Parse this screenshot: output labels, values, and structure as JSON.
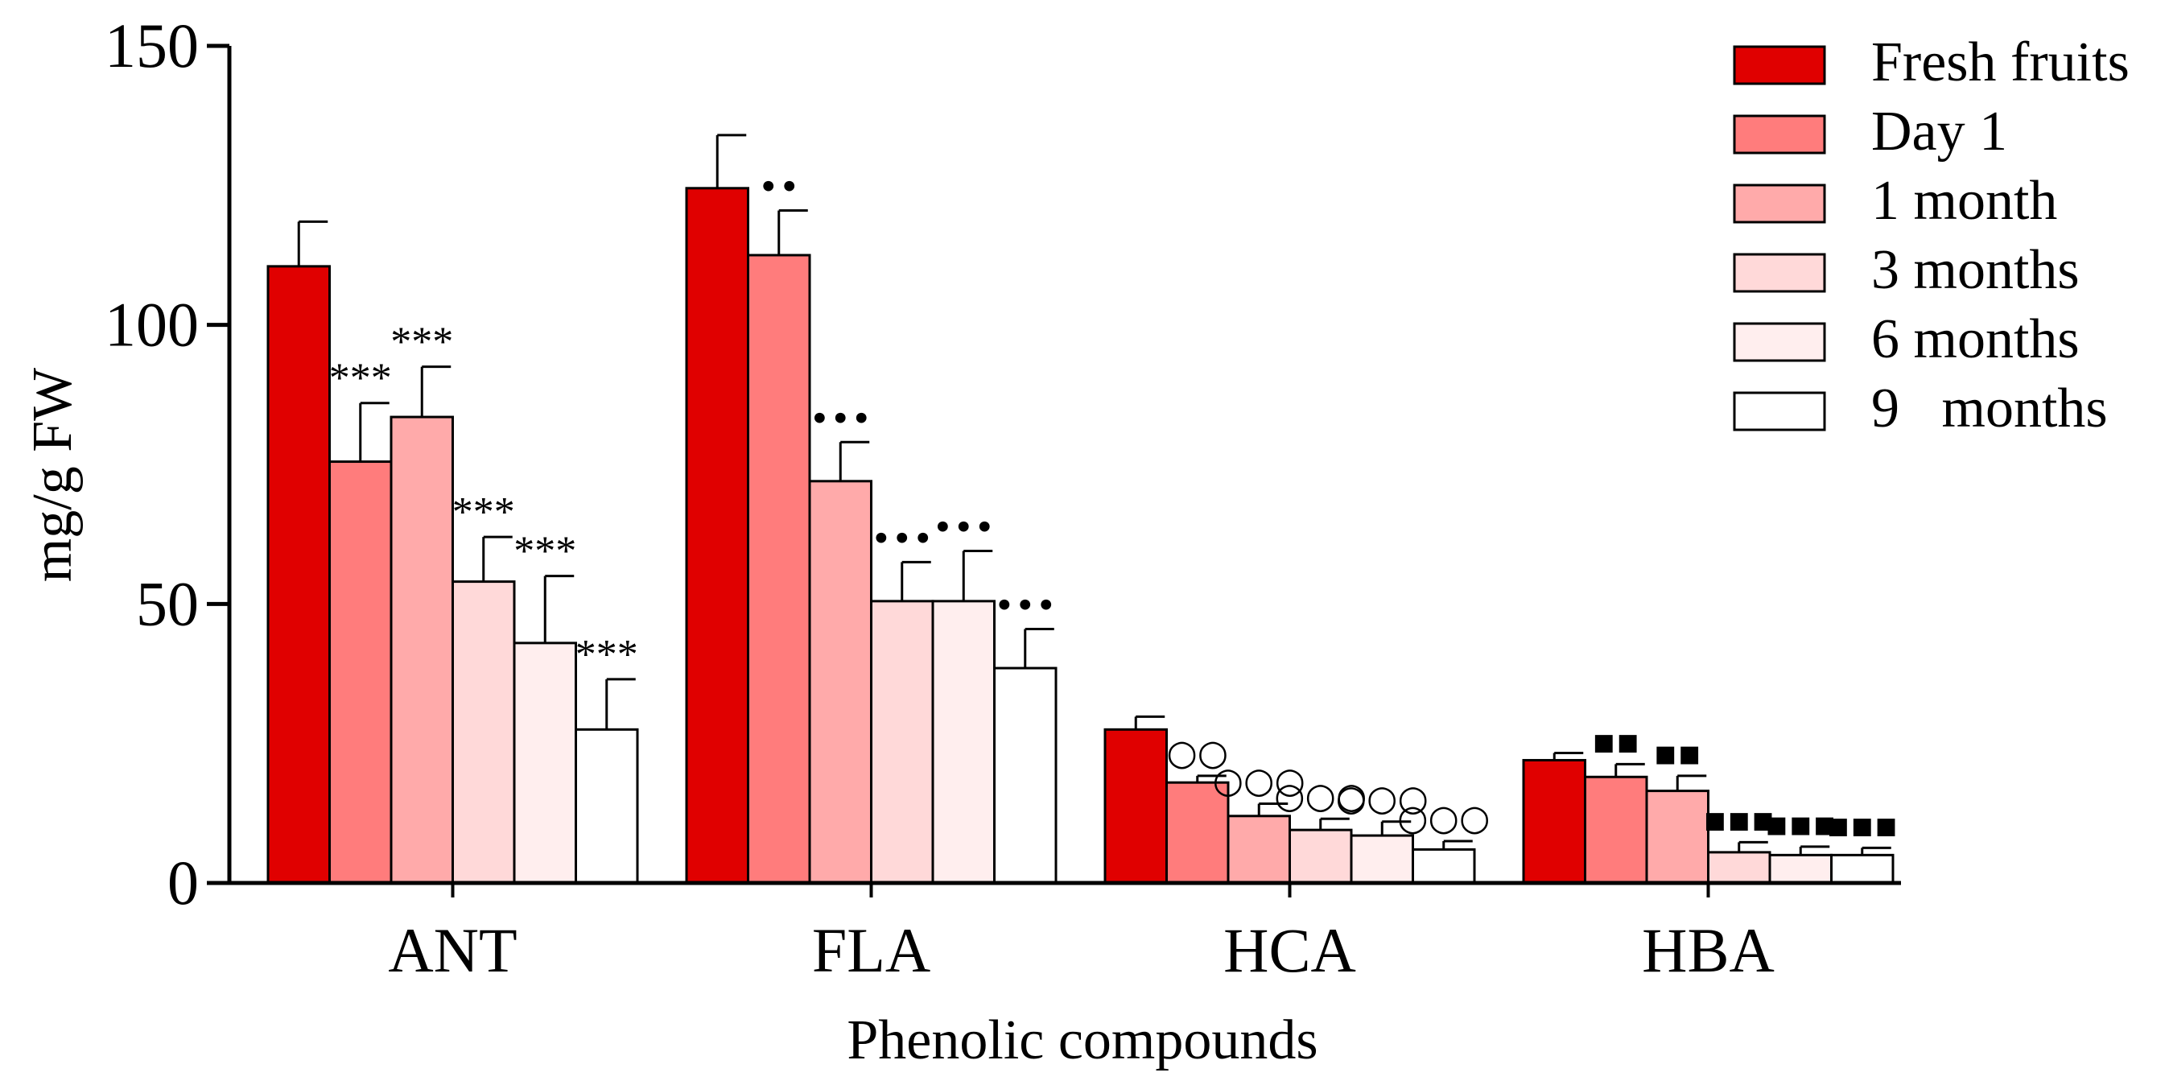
{
  "chart_data": {
    "type": "bar",
    "title": "",
    "xlabel": "Phenolic compounds",
    "ylabel": "mg/g FW",
    "ylim": [
      0,
      150
    ],
    "yticks": [
      "0",
      "50",
      "100",
      "150"
    ],
    "categories": [
      "ANT",
      "FLA",
      "HCA",
      "HBA"
    ],
    "legend_position": "top-right",
    "series": [
      {
        "name": "Fresh fruits",
        "color": "#e00000",
        "values": [
          110.5,
          124.5,
          27.5,
          22
        ],
        "errors": [
          8,
          9.5,
          2.3,
          1.3
        ],
        "sig": [
          "",
          "",
          "",
          ""
        ]
      },
      {
        "name": "Day 1",
        "color": "#ff7c7c",
        "values": [
          75.5,
          112.5,
          18,
          19
        ],
        "errors": [
          10.5,
          8,
          1.2,
          2.3
        ],
        "sig": [
          "***",
          "••",
          "○○",
          "▪▪"
        ]
      },
      {
        "name": "1 month",
        "color": "#ffaaaa",
        "values": [
          83.5,
          72,
          12,
          16.5
        ],
        "errors": [
          9,
          7,
          2.2,
          2.7
        ],
        "sig": [
          "***",
          "•••",
          "○○○",
          "▪▪"
        ]
      },
      {
        "name": "3 months",
        "color": "#ffd9d9",
        "values": [
          54,
          50.5,
          9.5,
          5.5
        ],
        "errors": [
          8,
          7,
          2,
          1.8
        ],
        "sig": [
          "***",
          "•••",
          "○○○",
          "▪▪▪"
        ]
      },
      {
        "name": "6 months",
        "color": "#ffeeee",
        "values": [
          43,
          50.5,
          8.5,
          5
        ],
        "errors": [
          12,
          9,
          2.5,
          1.5
        ],
        "sig": [
          "***",
          "•••",
          "○○○",
          "▪▪▪"
        ]
      },
      {
        "name": "9   months",
        "color": "#ffffff",
        "values": [
          27.5,
          38.5,
          6,
          5
        ],
        "errors": [
          9,
          7,
          1.5,
          1.3
        ],
        "sig": [
          "***",
          "•••",
          "○○○",
          "▪▪▪"
        ]
      }
    ]
  }
}
